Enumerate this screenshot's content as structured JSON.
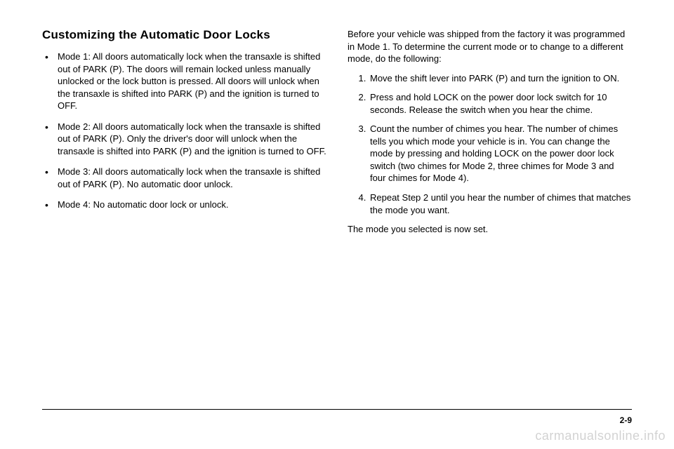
{
  "left": {
    "heading": "Customizing the Automatic Door Locks",
    "modes": [
      "Mode 1: All doors automatically lock when the transaxle is shifted out of PARK (P). The doors will remain locked unless manually unlocked or the lock button is pressed. All doors will unlock when the transaxle is shifted into PARK (P) and the ignition is turned to OFF.",
      "Mode 2: All doors automatically lock when the transaxle is shifted out of PARK (P). Only the driver's door will unlock when the transaxle is shifted into PARK (P) and the ignition is turned to OFF.",
      "Mode 3: All doors automatically lock when the transaxle is shifted out of PARK (P). No automatic door unlock.",
      "Mode 4: No automatic door lock or unlock."
    ]
  },
  "right": {
    "lead": "Before your vehicle was shipped from the factory it was programmed in Mode 1. To determine the current mode or to change to a different mode, do the following:",
    "steps": [
      "Move the shift lever into PARK (P) and turn the ignition to ON.",
      "Press and hold LOCK on the power door lock switch for 10 seconds. Release the switch when you hear the chime.",
      "Count the number of chimes you hear. The number of chimes tells you which mode your vehicle is in. You can change the mode by pressing and holding LOCK on the power door lock switch (two chimes for Mode 2, three chimes for Mode 3 and four chimes for Mode 4).",
      "Repeat Step 2 until you hear the number of chimes that matches the mode you want."
    ],
    "closing": "The mode you selected is now set."
  },
  "pagenum": "2-9",
  "watermark": "carmanualsonline.info"
}
